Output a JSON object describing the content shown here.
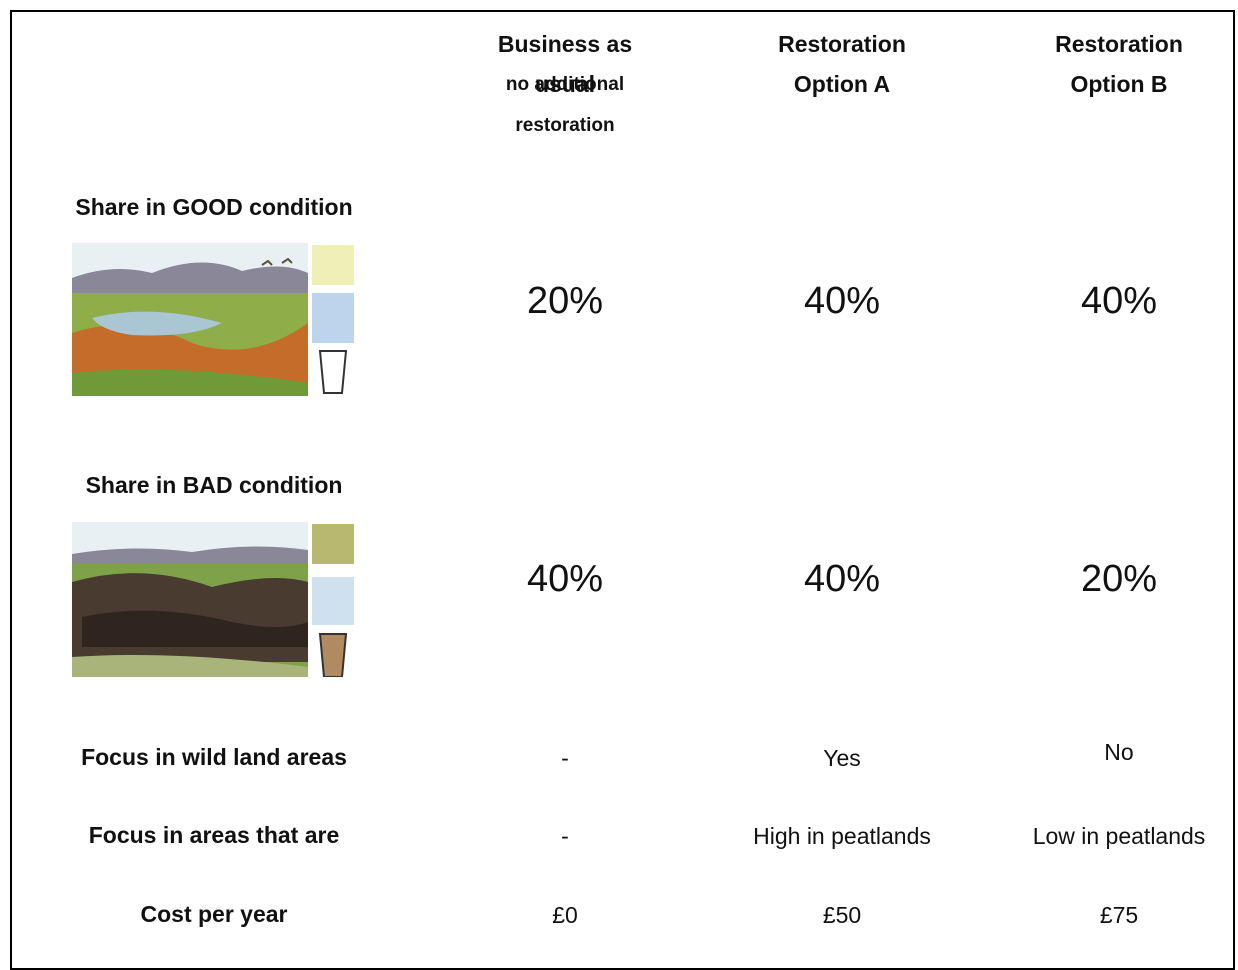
{
  "table": {
    "columns": [
      {
        "title": "Business as usual",
        "subtitle": "no additional restoration"
      },
      {
        "title": "Restoration Option A"
      },
      {
        "title": "Restoration Option B"
      }
    ],
    "rows": [
      {
        "label": "Share in GOOD condition",
        "cells": [
          "20%",
          "40%",
          "40%"
        ]
      },
      {
        "label": "Share in BAD condition",
        "cells": [
          "40%",
          "40%",
          "20%"
        ]
      },
      {
        "label": "Focus in wild land areas",
        "cells": [
          "-",
          "Yes",
          "No"
        ]
      },
      {
        "label": "Focus in areas that are",
        "cells": [
          "-",
          "High in peatlands",
          "Low in peatlands"
        ]
      },
      {
        "label": "Cost per year",
        "cells": [
          "£0",
          "£50",
          "£75"
        ]
      }
    ]
  }
}
